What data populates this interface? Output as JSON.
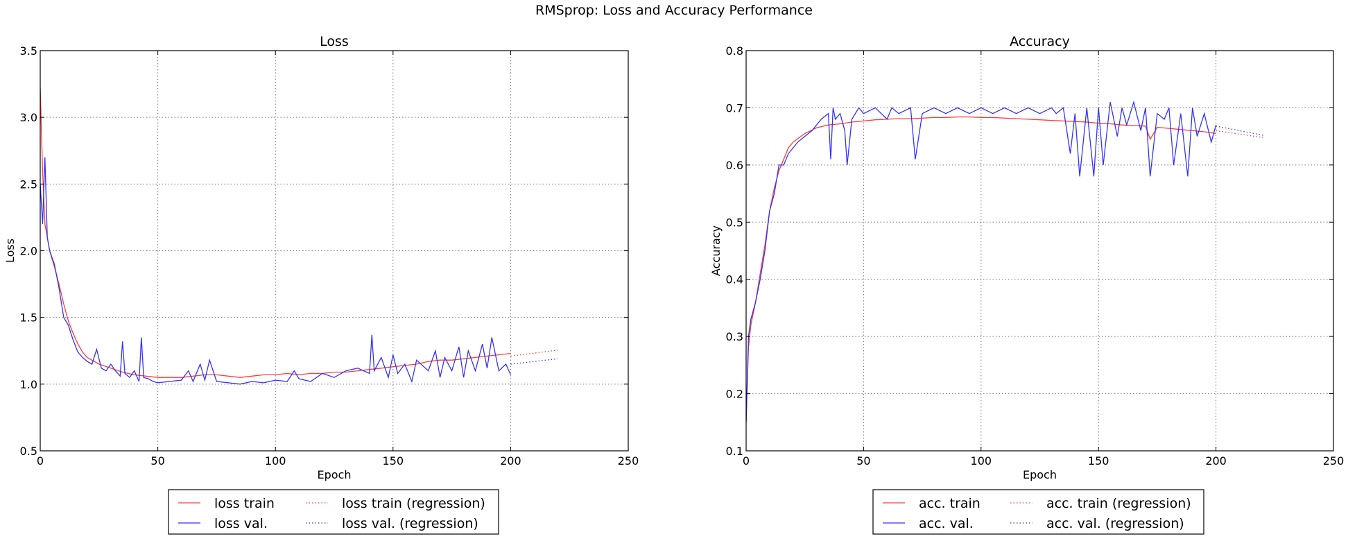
{
  "figure": {
    "title": "RMSprop: Loss and Accuracy Performance"
  },
  "colors": {
    "train": "#ff3b3b",
    "val": "#3232ff",
    "grid": "#777777"
  },
  "chart_data": [
    {
      "type": "line",
      "title": "Loss",
      "xlabel": "Epoch",
      "ylabel": "Loss",
      "xlim": [
        0,
        250
      ],
      "ylim": [
        0.5,
        3.5
      ],
      "xticks": [
        0,
        50,
        100,
        150,
        200,
        250
      ],
      "xtick_labels": [
        "0",
        "50",
        "100",
        "150",
        "200",
        "250"
      ],
      "yticks": [
        0.5,
        1.0,
        1.5,
        2.0,
        2.5,
        3.0,
        3.5
      ],
      "ytick_labels": [
        "0.5",
        "1.0",
        "1.5",
        "2.0",
        "2.5",
        "3.0",
        "3.5"
      ],
      "grid": true,
      "legend_position": "bottom-center, below axes, 2 columns",
      "series": [
        {
          "name": "loss train",
          "style": "solid",
          "color": "#ff3b3b",
          "x": [
            0,
            1,
            2,
            4,
            6,
            8,
            10,
            12,
            14,
            16,
            18,
            20,
            25,
            30,
            35,
            40,
            45,
            50,
            55,
            60,
            65,
            70,
            75,
            80,
            85,
            90,
            95,
            100,
            105,
            110,
            115,
            120,
            125,
            130,
            135,
            140,
            145,
            150,
            155,
            160,
            165,
            170,
            175,
            180,
            185,
            190,
            195,
            200
          ],
          "y": [
            3.22,
            2.6,
            2.2,
            2.0,
            1.88,
            1.75,
            1.6,
            1.47,
            1.38,
            1.3,
            1.24,
            1.2,
            1.15,
            1.12,
            1.09,
            1.07,
            1.06,
            1.05,
            1.05,
            1.05,
            1.06,
            1.07,
            1.07,
            1.06,
            1.05,
            1.06,
            1.07,
            1.07,
            1.08,
            1.07,
            1.08,
            1.08,
            1.09,
            1.09,
            1.1,
            1.11,
            1.12,
            1.13,
            1.14,
            1.15,
            1.17,
            1.18,
            1.18,
            1.19,
            1.2,
            1.21,
            1.22,
            1.23
          ]
        },
        {
          "name": "loss val.",
          "style": "solid",
          "color": "#3232ff",
          "x": [
            0,
            1,
            2,
            3,
            4,
            6,
            8,
            10,
            12,
            14,
            16,
            18,
            20,
            22,
            24,
            26,
            28,
            30,
            32,
            34,
            35,
            36,
            38,
            40,
            42,
            43,
            44,
            46,
            48,
            50,
            55,
            60,
            63,
            65,
            68,
            70,
            72,
            75,
            80,
            85,
            90,
            95,
            100,
            105,
            108,
            110,
            115,
            120,
            125,
            130,
            135,
            140,
            141,
            142,
            145,
            148,
            150,
            152,
            155,
            158,
            160,
            165,
            168,
            170,
            172,
            175,
            178,
            180,
            182,
            185,
            188,
            190,
            192,
            195,
            198,
            200
          ],
          "y": [
            2.5,
            2.2,
            2.7,
            2.1,
            2.0,
            1.9,
            1.72,
            1.5,
            1.44,
            1.33,
            1.24,
            1.2,
            1.17,
            1.15,
            1.26,
            1.12,
            1.1,
            1.15,
            1.1,
            1.06,
            1.32,
            1.08,
            1.05,
            1.1,
            1.02,
            1.35,
            1.05,
            1.04,
            1.02,
            1.01,
            1.02,
            1.03,
            1.1,
            1.02,
            1.15,
            1.03,
            1.18,
            1.02,
            1.01,
            1.0,
            1.02,
            1.01,
            1.03,
            1.02,
            1.1,
            1.04,
            1.02,
            1.08,
            1.05,
            1.1,
            1.12,
            1.08,
            1.37,
            1.1,
            1.2,
            1.05,
            1.22,
            1.08,
            1.15,
            1.02,
            1.18,
            1.1,
            1.25,
            1.05,
            1.2,
            1.1,
            1.28,
            1.05,
            1.25,
            1.1,
            1.3,
            1.12,
            1.35,
            1.1,
            1.15,
            1.07
          ]
        },
        {
          "name": "loss train (regression)",
          "style": "dotted",
          "color": "#ff3b3b",
          "x": [
            200,
            220
          ],
          "y": [
            1.21,
            1.255
          ]
        },
        {
          "name": "loss val. (regression)",
          "style": "dotted",
          "color": "#3232ff",
          "x": [
            200,
            220
          ],
          "y": [
            1.15,
            1.19
          ]
        }
      ]
    },
    {
      "type": "line",
      "title": "Accuracy",
      "xlabel": "Epoch",
      "ylabel": "Accuracy",
      "xlim": [
        0,
        250
      ],
      "ylim": [
        0.1,
        0.8
      ],
      "xticks": [
        0,
        50,
        100,
        150,
        200,
        250
      ],
      "xtick_labels": [
        "0",
        "50",
        "100",
        "150",
        "200",
        "250"
      ],
      "yticks": [
        0.1,
        0.2,
        0.3,
        0.4,
        0.5,
        0.6,
        0.7,
        0.8
      ],
      "ytick_labels": [
        "0.1",
        "0.2",
        "0.3",
        "0.4",
        "0.5",
        "0.6",
        "0.7",
        "0.8"
      ],
      "grid": true,
      "legend_position": "bottom-center, below axes, 2 columns",
      "series": [
        {
          "name": "acc. train",
          "style": "solid",
          "color": "#ff3b3b",
          "x": [
            0,
            1,
            2,
            4,
            6,
            8,
            10,
            12,
            14,
            16,
            18,
            20,
            25,
            30,
            35,
            40,
            45,
            50,
            55,
            60,
            65,
            70,
            75,
            80,
            85,
            90,
            95,
            100,
            105,
            110,
            115,
            120,
            125,
            130,
            135,
            140,
            145,
            150,
            155,
            160,
            165,
            170,
            172,
            175,
            180,
            185,
            190,
            195,
            200
          ],
          "y": [
            0.15,
            0.28,
            0.32,
            0.36,
            0.41,
            0.46,
            0.52,
            0.56,
            0.59,
            0.61,
            0.63,
            0.64,
            0.655,
            0.665,
            0.67,
            0.672,
            0.675,
            0.677,
            0.679,
            0.68,
            0.681,
            0.681,
            0.682,
            0.683,
            0.683,
            0.684,
            0.684,
            0.683,
            0.683,
            0.682,
            0.681,
            0.68,
            0.679,
            0.678,
            0.677,
            0.676,
            0.675,
            0.673,
            0.672,
            0.67,
            0.669,
            0.668,
            0.645,
            0.666,
            0.664,
            0.662,
            0.66,
            0.658,
            0.655
          ]
        },
        {
          "name": "acc. val.",
          "style": "solid",
          "color": "#3232ff",
          "x": [
            0,
            1,
            2,
            4,
            6,
            8,
            10,
            12,
            14,
            16,
            18,
            20,
            22,
            25,
            28,
            30,
            32,
            35,
            36,
            37,
            38,
            40,
            42,
            43,
            45,
            48,
            50,
            55,
            60,
            62,
            65,
            70,
            72,
            75,
            80,
            85,
            90,
            95,
            100,
            105,
            110,
            115,
            120,
            125,
            130,
            132,
            135,
            138,
            140,
            142,
            145,
            148,
            150,
            152,
            155,
            158,
            160,
            162,
            165,
            168,
            170,
            172,
            175,
            178,
            180,
            182,
            185,
            188,
            190,
            192,
            195,
            198,
            200
          ],
          "y": [
            0.15,
            0.3,
            0.33,
            0.36,
            0.4,
            0.45,
            0.52,
            0.55,
            0.6,
            0.6,
            0.62,
            0.63,
            0.64,
            0.65,
            0.66,
            0.67,
            0.68,
            0.69,
            0.61,
            0.7,
            0.68,
            0.69,
            0.66,
            0.6,
            0.68,
            0.7,
            0.69,
            0.7,
            0.68,
            0.7,
            0.69,
            0.7,
            0.61,
            0.69,
            0.7,
            0.69,
            0.7,
            0.69,
            0.7,
            0.69,
            0.7,
            0.69,
            0.7,
            0.69,
            0.7,
            0.69,
            0.7,
            0.62,
            0.69,
            0.58,
            0.7,
            0.58,
            0.7,
            0.6,
            0.71,
            0.65,
            0.7,
            0.67,
            0.71,
            0.66,
            0.7,
            0.58,
            0.69,
            0.68,
            0.7,
            0.6,
            0.69,
            0.58,
            0.7,
            0.65,
            0.69,
            0.64,
            0.67
          ]
        },
        {
          "name": "acc. train (regression)",
          "style": "dotted",
          "color": "#ff3b3b",
          "x": [
            200,
            220
          ],
          "y": [
            0.66,
            0.648
          ]
        },
        {
          "name": "acc. val. (regression)",
          "style": "dotted",
          "color": "#3232ff",
          "x": [
            200,
            220
          ],
          "y": [
            0.668,
            0.652
          ]
        }
      ]
    }
  ]
}
